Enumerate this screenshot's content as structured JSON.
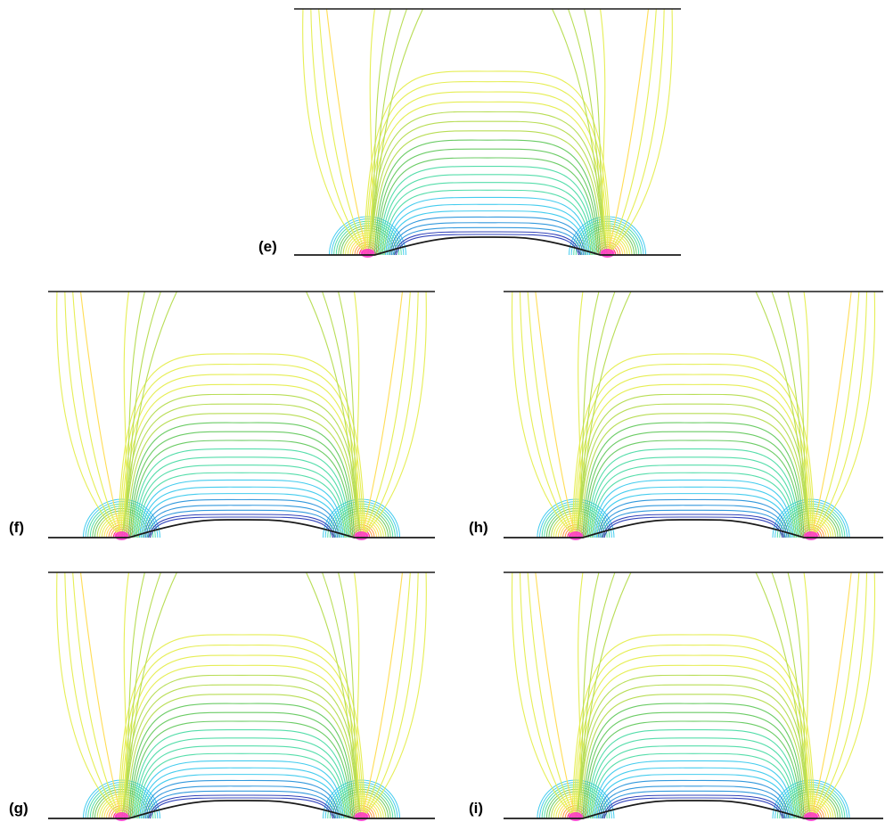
{
  "figure": {
    "panels": [
      {
        "id": "e",
        "label": "(e)"
      },
      {
        "id": "f",
        "label": "(f)"
      },
      {
        "id": "h",
        "label": "(h)"
      },
      {
        "id": "g",
        "label": "(g)"
      },
      {
        "id": "i",
        "label": "(i)"
      }
    ],
    "colors": {
      "boundary": "#1a1a1a",
      "contour_ramp": [
        "#ff00cc",
        "#ff3366",
        "#ff9944",
        "#ffdd55",
        "#e6ee55",
        "#b8dd55",
        "#6ccc66",
        "#55ddaa",
        "#44ccee",
        "#3399dd",
        "#3344bb"
      ]
    },
    "contour_levels": {
      "arches": 22,
      "near_field_loops": 16,
      "outer_lines_per_side": 4
    }
  }
}
